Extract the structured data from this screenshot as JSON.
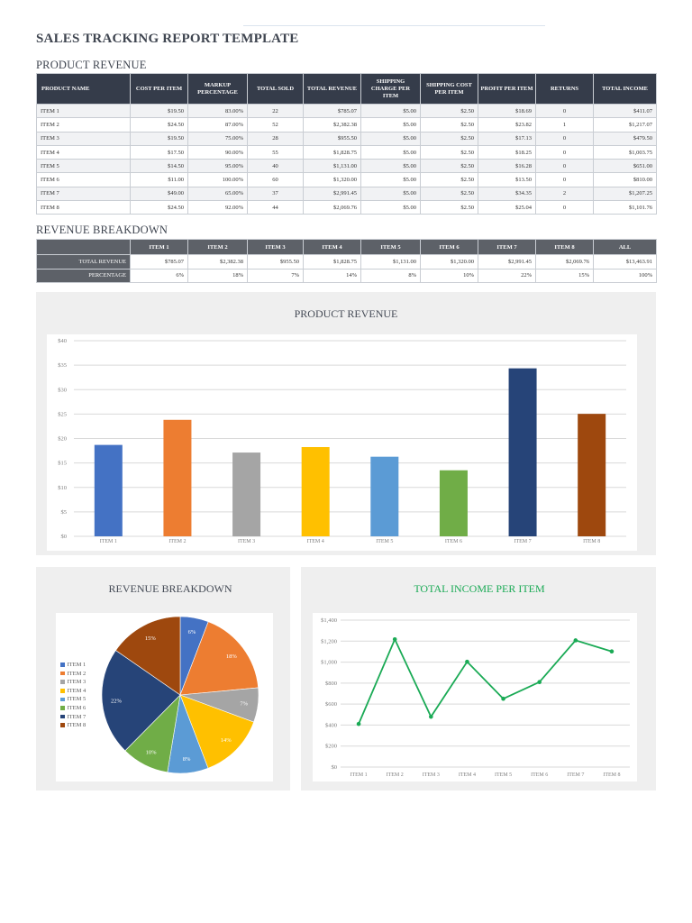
{
  "document": {
    "title": "SALES TRACKING REPORT TEMPLATE"
  },
  "product_revenue": {
    "section_title": "PRODUCT REVENUE",
    "headers": [
      "PRODUCT NAME",
      "COST PER ITEM",
      "MARKUP PERCENTAGE",
      "TOTAL SOLD",
      "TOTAL REVENUE",
      "SHIPPING CHARGE PER ITEM",
      "SHIPPING COST PER ITEM",
      "PROFIT PER ITEM",
      "RETURNS",
      "TOTAL INCOME"
    ],
    "rows": [
      [
        "ITEM 1",
        "$19.50",
        "83.00%",
        "22",
        "$785.07",
        "$5.00",
        "$2.50",
        "$18.69",
        "0",
        "$411.07"
      ],
      [
        "ITEM 2",
        "$24.50",
        "87.00%",
        "52",
        "$2,382.38",
        "$5.00",
        "$2.50",
        "$23.82",
        "1",
        "$1,217.07"
      ],
      [
        "ITEM 3",
        "$19.50",
        "75.00%",
        "28",
        "$955.50",
        "$5.00",
        "$2.50",
        "$17.13",
        "0",
        "$479.50"
      ],
      [
        "ITEM 4",
        "$17.50",
        "90.00%",
        "55",
        "$1,828.75",
        "$5.00",
        "$2.50",
        "$18.25",
        "0",
        "$1,003.75"
      ],
      [
        "ITEM 5",
        "$14.50",
        "95.00%",
        "40",
        "$1,131.00",
        "$5.00",
        "$2.50",
        "$16.28",
        "0",
        "$651.00"
      ],
      [
        "ITEM 6",
        "$11.00",
        "100.00%",
        "60",
        "$1,320.00",
        "$5.00",
        "$2.50",
        "$13.50",
        "0",
        "$810.00"
      ],
      [
        "ITEM 7",
        "$49.00",
        "65.00%",
        "37",
        "$2,991.45",
        "$5.00",
        "$2.50",
        "$34.35",
        "2",
        "$1,207.25"
      ],
      [
        "ITEM 8",
        "$24.50",
        "92.00%",
        "44",
        "$2,069.76",
        "$5.00",
        "$2.50",
        "$25.04",
        "0",
        "$1,101.76"
      ]
    ]
  },
  "revenue_breakdown": {
    "section_title": "REVENUE BREAKDOWN",
    "headers": [
      "",
      "ITEM 1",
      "ITEM 2",
      "ITEM 3",
      "ITEM 4",
      "ITEM 5",
      "ITEM 6",
      "ITEM 7",
      "ITEM 8",
      "ALL"
    ],
    "rows": [
      [
        "TOTAL REVENUE",
        "$785.07",
        "$2,382.38",
        "$955.50",
        "$1,828.75",
        "$1,131.00",
        "$1,320.00",
        "$2,991.45",
        "$2,069.76",
        "$13,463.91"
      ],
      [
        "PERCENTAGE",
        "6%",
        "18%",
        "7%",
        "14%",
        "8%",
        "10%",
        "22%",
        "15%",
        "100%"
      ]
    ]
  },
  "colors": {
    "item1": "#4472c4",
    "item2": "#ed7d31",
    "item3": "#a5a5a5",
    "item4": "#ffc000",
    "item5": "#5b9bd5",
    "item6": "#70ad47",
    "item7": "#264478",
    "item8": "#9e480e",
    "line": "#1aaa55"
  },
  "chart_data": [
    {
      "type": "bar",
      "title": "PRODUCT REVENUE",
      "categories": [
        "ITEM 1",
        "ITEM 2",
        "ITEM 3",
        "ITEM 4",
        "ITEM 5",
        "ITEM 6",
        "ITEM 7",
        "ITEM 8"
      ],
      "values": [
        18.69,
        23.82,
        17.13,
        18.25,
        16.28,
        13.5,
        34.35,
        25.04
      ],
      "yticks": [
        "$0",
        "$5",
        "$10",
        "$15",
        "$20",
        "$25",
        "$30",
        "$35",
        "$40"
      ],
      "ylim": [
        0,
        40
      ],
      "grid": true,
      "xlabel": "",
      "ylabel": ""
    },
    {
      "type": "pie",
      "title": "REVENUE BREAKDOWN",
      "categories": [
        "ITEM 1",
        "ITEM 2",
        "ITEM 3",
        "ITEM 4",
        "ITEM 5",
        "ITEM 6",
        "ITEM 7",
        "ITEM 8"
      ],
      "values": [
        785.07,
        2382.38,
        955.5,
        1828.75,
        1131.0,
        1320.0,
        2991.45,
        2069.76
      ],
      "labels": [
        "6%",
        "18%",
        "7%",
        "14%",
        "8%",
        "10%",
        "22%",
        "15%"
      ],
      "legend": "left"
    },
    {
      "type": "line",
      "title": "TOTAL INCOME PER ITEM",
      "categories": [
        "ITEM 1",
        "ITEM 2",
        "ITEM 3",
        "ITEM 4",
        "ITEM 5",
        "ITEM 6",
        "ITEM 7",
        "ITEM 8"
      ],
      "values": [
        411.07,
        1217.07,
        479.5,
        1003.75,
        651.0,
        810.0,
        1207.25,
        1101.76
      ],
      "yticks": [
        "$0",
        "$200",
        "$400",
        "$600",
        "$800",
        "$1,000",
        "$1,200",
        "$1,400"
      ],
      "ylim": [
        0,
        1400
      ],
      "grid": true,
      "xlabel": "",
      "ylabel": ""
    }
  ]
}
